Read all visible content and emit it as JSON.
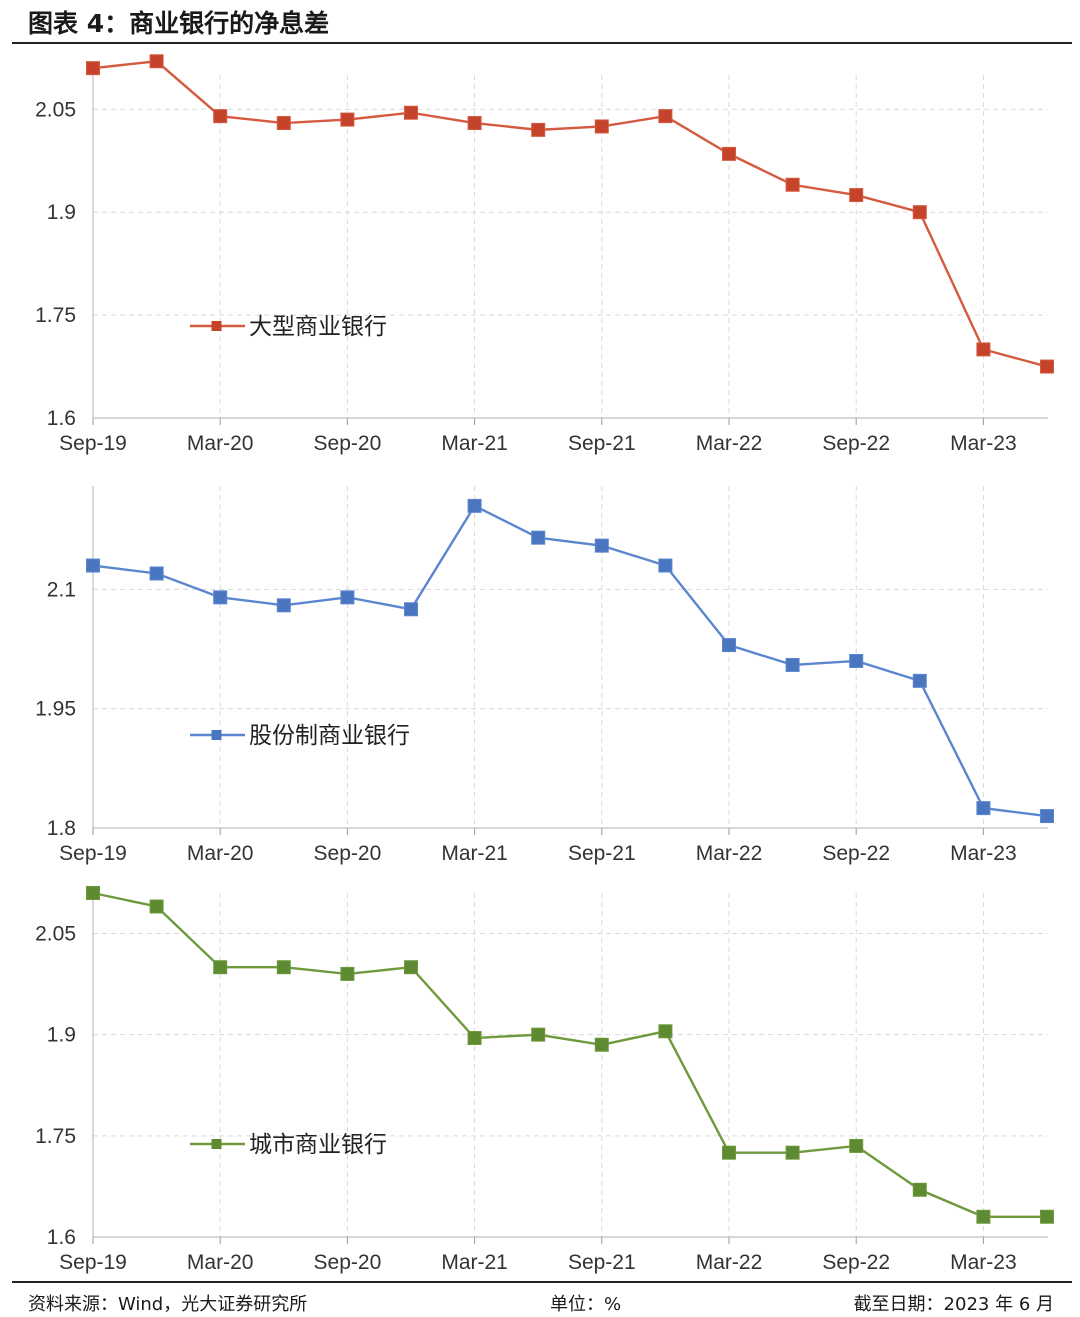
{
  "header": {
    "title": "图表 4：商业银行的净息差"
  },
  "footer": {
    "source": "资料来源：Wind，光大证券研究所",
    "unit": "单位：%",
    "date": "截至日期：2023 年 6 月"
  },
  "chart_data": [
    {
      "type": "line",
      "x_tick_labels": [
        "Sep-19",
        "Mar-20",
        "Sep-20",
        "Mar-21",
        "Sep-21",
        "Mar-22",
        "Sep-22",
        "Mar-23"
      ],
      "x": [
        "Sep-19",
        "Dec-19",
        "Mar-20",
        "Jun-20",
        "Sep-20",
        "Dec-20",
        "Mar-21",
        "Jun-21",
        "Sep-21",
        "Dec-21",
        "Mar-22",
        "Jun-22",
        "Sep-22",
        "Dec-22",
        "Mar-23",
        "Jun-23"
      ],
      "y_ticks": [
        "1.6",
        "1.75",
        "1.9",
        "2.05"
      ],
      "ylim": [
        1.6,
        2.1
      ],
      "series": [
        {
          "name": "大型商业银行",
          "color": "#d55a3f",
          "marker_color": "#c4432a",
          "values": [
            2.11,
            2.12,
            2.04,
            2.03,
            2.035,
            2.045,
            2.03,
            2.02,
            2.025,
            2.04,
            1.985,
            1.94,
            1.925,
            1.9,
            1.7,
            1.675
          ]
        }
      ],
      "legend_position": "left-middle",
      "grid": true
    },
    {
      "type": "line",
      "x_tick_labels": [
        "Sep-19",
        "Mar-20",
        "Sep-20",
        "Mar-21",
        "Sep-21",
        "Mar-22",
        "Sep-22",
        "Mar-23"
      ],
      "x": [
        "Sep-19",
        "Dec-19",
        "Mar-20",
        "Jun-20",
        "Sep-20",
        "Dec-20",
        "Mar-21",
        "Jun-21",
        "Sep-21",
        "Dec-21",
        "Mar-22",
        "Jun-22",
        "Sep-22",
        "Dec-22",
        "Mar-23",
        "Jun-23"
      ],
      "y_ticks": [
        "1.8",
        "1.95",
        "2.1"
      ],
      "ylim": [
        1.8,
        2.23
      ],
      "series": [
        {
          "name": "股份制商业银行",
          "color": "#5b86cf",
          "marker_color": "#4a76c0",
          "values": [
            2.13,
            2.12,
            2.09,
            2.08,
            2.09,
            2.075,
            2.205,
            2.165,
            2.155,
            2.13,
            2.03,
            2.005,
            2.01,
            1.985,
            1.825,
            1.815
          ]
        }
      ],
      "legend_position": "left-middle",
      "grid": true
    },
    {
      "type": "line",
      "x_tick_labels": [
        "Sep-19",
        "Mar-20",
        "Sep-20",
        "Mar-21",
        "Sep-21",
        "Mar-22",
        "Sep-22",
        "Mar-23"
      ],
      "x": [
        "Sep-19",
        "Dec-19",
        "Mar-20",
        "Jun-20",
        "Sep-20",
        "Dec-20",
        "Mar-21",
        "Jun-21",
        "Sep-21",
        "Dec-21",
        "Mar-22",
        "Jun-22",
        "Sep-22",
        "Dec-22",
        "Mar-23",
        "Jun-23"
      ],
      "y_ticks": [
        "1.6",
        "1.75",
        "1.9",
        "2.05"
      ],
      "ylim": [
        1.6,
        2.11
      ],
      "series": [
        {
          "name": "城市商业银行",
          "color": "#6e9a3d",
          "marker_color": "#5e8a32",
          "values": [
            2.11,
            2.09,
            2.0,
            2.0,
            1.99,
            2.0,
            1.895,
            1.9,
            1.885,
            1.905,
            1.725,
            1.725,
            1.735,
            1.67,
            1.63,
            1.63
          ]
        }
      ],
      "legend_position": "left-middle",
      "grid": true
    }
  ]
}
